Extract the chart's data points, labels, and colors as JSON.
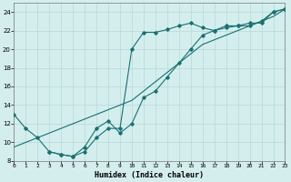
{
  "xlabel": "Humidex (Indice chaleur)",
  "xlim": [
    0,
    23
  ],
  "ylim": [
    8,
    25
  ],
  "xticks": [
    0,
    1,
    2,
    3,
    4,
    5,
    6,
    7,
    8,
    9,
    10,
    11,
    12,
    13,
    14,
    15,
    16,
    17,
    18,
    19,
    20,
    21,
    22,
    23
  ],
  "yticks": [
    8,
    10,
    12,
    14,
    16,
    18,
    20,
    22,
    24
  ],
  "bg_color": "#d4eeee",
  "line_color": "#1a7070",
  "grid_color": "#b8d8d8",
  "line1_x": [
    0,
    1,
    2,
    3,
    4,
    5,
    6,
    7,
    8,
    9,
    10,
    11,
    12,
    13,
    14,
    15,
    16,
    17,
    18,
    19,
    20,
    21,
    22,
    23
  ],
  "line1_y": [
    13,
    11.5,
    10.5,
    9.0,
    8.7,
    8.5,
    9.0,
    10.5,
    11.5,
    11.5,
    20.0,
    21.8,
    21.8,
    22.1,
    22.5,
    22.8,
    22.3,
    22.0,
    22.5,
    22.5,
    22.5,
    23.0,
    24.0,
    24.3
  ],
  "line2_x": [
    3,
    4,
    5,
    6,
    7,
    8,
    9,
    10,
    11,
    12,
    13,
    14,
    15,
    16,
    17,
    18,
    19,
    20,
    21,
    22,
    23
  ],
  "line2_y": [
    9.0,
    8.7,
    8.5,
    9.5,
    11.5,
    12.3,
    11.0,
    12.0,
    14.8,
    15.5,
    17.0,
    18.5,
    20.0,
    21.5,
    22.0,
    22.3,
    22.5,
    22.8,
    22.8,
    24.0,
    24.3
  ],
  "line3_x": [
    0,
    1,
    2,
    3,
    4,
    5,
    6,
    7,
    8,
    9,
    10,
    11,
    12,
    13,
    14,
    15,
    16,
    17,
    18,
    19,
    20,
    21,
    22,
    23
  ],
  "line3_y": [
    9.5,
    10.0,
    10.5,
    11.0,
    11.5,
    12.0,
    12.5,
    13.0,
    13.5,
    14.0,
    14.5,
    15.5,
    16.5,
    17.5,
    18.5,
    19.5,
    20.5,
    21.0,
    21.5,
    22.0,
    22.5,
    23.0,
    23.5,
    24.3
  ]
}
